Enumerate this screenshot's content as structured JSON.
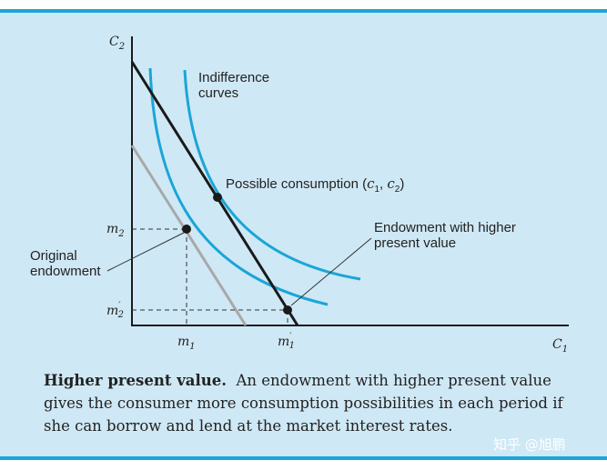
{
  "axes": {
    "y_label": "C",
    "y_sub": "2",
    "x_label": "C",
    "x_sub": "1"
  },
  "ticks": {
    "y_m2": "m",
    "y_m2_sub": "2",
    "y_m2p": "m",
    "y_m2p_sub": "2",
    "y_m2p_prime": "′",
    "x_m1": "m",
    "x_m1_sub": "1",
    "x_m1p": "m",
    "x_m1p_sub": "1",
    "x_m1p_prime": "′"
  },
  "labels": {
    "indiff_line1": "Indifference",
    "indiff_line2": "curves",
    "possible": "Possible consumption (",
    "possible_c1": "c",
    "possible_c1_sub": "1",
    "possible_sep": ", ",
    "possible_c2": "c",
    "possible_c2_sub": "2",
    "possible_end": ")",
    "endow_line1": "Endowment with higher",
    "endow_line2": "present value",
    "orig_line1": "Original",
    "orig_line2": "endowment"
  },
  "caption": {
    "title": "Higher present value.",
    "body": "An endowment with higher present value gives the consumer more consumption possibilities in each period if she can borrow and lend at the market interest rates."
  },
  "watermark": "知乎 @旭鹏",
  "colors": {
    "background": "#cfe8f5",
    "rule": "#1aa6d6",
    "curve": "#1aa6d6",
    "budget_new": "#1a1a1a",
    "budget_old": "#a8a8a8"
  }
}
